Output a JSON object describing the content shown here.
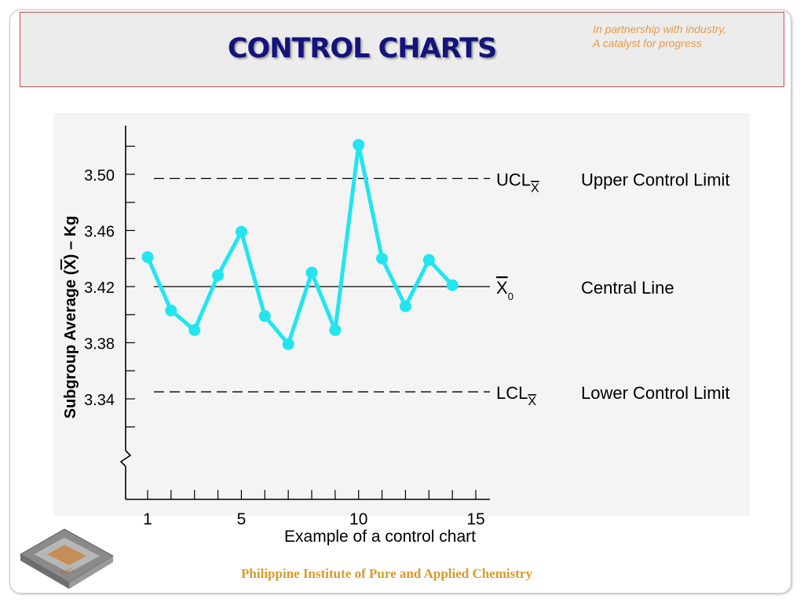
{
  "header": {
    "title": "CONTROL CHARTS",
    "tagline_line1": "In partnership with industry,",
    "tagline_line2": "A catalyst for progress"
  },
  "chart_data": {
    "type": "line",
    "ylabel_parts": [
      "Subgroup Average (",
      "X",
      ") – Kg"
    ],
    "yticks": [
      3.34,
      3.38,
      3.42,
      3.46,
      3.5
    ],
    "ylim": [
      3.33,
      3.53
    ],
    "xticks": [
      1,
      5,
      10,
      15
    ],
    "xlim": [
      0,
      16
    ],
    "series": [
      {
        "color": "#22e5ef",
        "x": [
          1,
          2,
          3,
          4,
          5,
          6,
          7,
          8,
          9,
          10,
          11,
          12,
          13,
          14
        ],
        "values": [
          3.441,
          3.403,
          3.389,
          3.428,
          3.459,
          3.399,
          3.379,
          3.43,
          3.389,
          3.521,
          3.44,
          3.406,
          3.439,
          3.421
        ]
      }
    ],
    "control_lines": [
      {
        "value": 3.497,
        "style": "dashed",
        "label_main": "UCL",
        "label_sub": "X",
        "description": "Upper Control Limit"
      },
      {
        "value": 3.42,
        "style": "solid",
        "label_main": "X",
        "label_sub": "0",
        "description": "Central Line"
      },
      {
        "value": 3.345,
        "style": "dashed",
        "label_main": "LCL",
        "label_sub": "X",
        "description": "Lower Control Limit"
      }
    ],
    "axis_break": true,
    "grid": false
  },
  "caption": "Example of a control chart",
  "footer": {
    "organization": "Philippine Institute of Pure and Applied Chemistry"
  },
  "logo": {
    "icon": "piac-logo-icon",
    "text": "PIAC"
  },
  "colors": {
    "title": "#14147a",
    "tagline": "#e79a4a",
    "header_border": "#c0504d",
    "series": "#22e5ef",
    "footer": "#d89a2a"
  }
}
